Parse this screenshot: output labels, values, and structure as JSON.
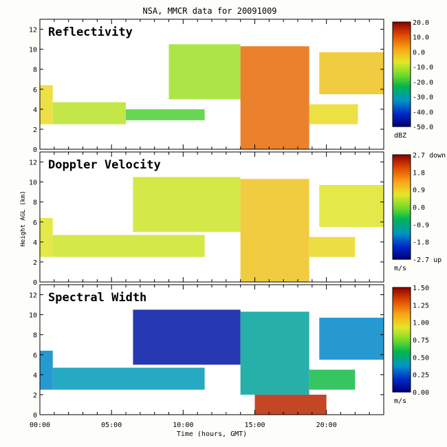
{
  "title": "NSA, MMCR data for 20091009",
  "ylabel": "Height AGL (km)",
  "xlabel": "Time (hours, GMT)",
  "x_ticks": [
    "00:00",
    "05:00",
    "10:00",
    "15:00",
    "20:00"
  ],
  "y_ticks": [
    "0",
    "2",
    "4",
    "6",
    "8",
    "10",
    "12"
  ],
  "chart_data": [
    {
      "type": "heatmap",
      "title": "Reflectivity",
      "xlim": [
        0,
        24
      ],
      "ylim": [
        0,
        13
      ],
      "colorbar": {
        "ticks": [
          "20.0",
          "10.0",
          "0.0",
          "-10.0",
          "-20.0",
          "-30.0",
          "-40.0",
          "-50.0"
        ],
        "unit": "dBZ",
        "range": [
          -50,
          20
        ]
      },
      "cloud_regions": [
        {
          "t_start": 0.0,
          "t_end": 0.9,
          "h_bottom": 2.5,
          "h_top": 6.4,
          "value": -5
        },
        {
          "t_start": 0.9,
          "t_end": 6.0,
          "h_bottom": 2.5,
          "h_top": 4.7,
          "value": -10
        },
        {
          "t_start": 6.0,
          "t_end": 11.5,
          "h_bottom": 2.9,
          "h_top": 4.0,
          "value": -18
        },
        {
          "t_start": 9.0,
          "t_end": 14.0,
          "h_bottom": 5.0,
          "h_top": 10.5,
          "value": -12
        },
        {
          "t_start": 14.0,
          "t_end": 18.8,
          "h_bottom": 0.0,
          "h_top": 10.3,
          "value": 8
        },
        {
          "t_start": 18.8,
          "t_end": 22.2,
          "h_bottom": 2.5,
          "h_top": 4.5,
          "value": -5
        },
        {
          "t_start": 19.5,
          "t_end": 24.0,
          "h_bottom": 5.5,
          "h_top": 9.7,
          "value": -2
        }
      ]
    },
    {
      "type": "heatmap",
      "title": "Doppler Velocity",
      "xlim": [
        0,
        24
      ],
      "ylim": [
        0,
        13
      ],
      "colorbar": {
        "ticks": [
          "2.7 down",
          "1.8",
          "0.9",
          "0.0",
          "-0.9",
          "-1.8",
          "-2.7 up"
        ],
        "unit": "m/s",
        "range": [
          -2.7,
          2.7
        ]
      },
      "cloud_regions": [
        {
          "t_start": 0.0,
          "t_end": 0.9,
          "h_bottom": 2.5,
          "h_top": 6.4,
          "value": 0.6
        },
        {
          "t_start": 0.9,
          "t_end": 11.5,
          "h_bottom": 2.5,
          "h_top": 4.7,
          "value": 0.5
        },
        {
          "t_start": 6.5,
          "t_end": 14.0,
          "h_bottom": 5.0,
          "h_top": 10.5,
          "value": 0.5
        },
        {
          "t_start": 14.0,
          "t_end": 18.8,
          "h_bottom": 0.0,
          "h_top": 10.3,
          "value": 1.0
        },
        {
          "t_start": 18.8,
          "t_end": 22.0,
          "h_bottom": 2.5,
          "h_top": 4.5,
          "value": 0.8
        },
        {
          "t_start": 19.5,
          "t_end": 24.0,
          "h_bottom": 5.5,
          "h_top": 9.7,
          "value": 0.6
        }
      ]
    },
    {
      "type": "heatmap",
      "title": "Spectral Width",
      "xlim": [
        0,
        24
      ],
      "ylim": [
        0,
        13
      ],
      "colorbar": {
        "ticks": [
          "1.50",
          "1.25",
          "1.00",
          "0.75",
          "0.50",
          "0.25",
          "0.00"
        ],
        "unit": "m/s",
        "range": [
          0,
          1.5
        ]
      },
      "cloud_regions": [
        {
          "t_start": 0.0,
          "t_end": 0.9,
          "h_bottom": 2.5,
          "h_top": 6.4,
          "value": 0.35
        },
        {
          "t_start": 0.9,
          "t_end": 11.5,
          "h_bottom": 2.5,
          "h_top": 4.7,
          "value": 0.4
        },
        {
          "t_start": 6.5,
          "t_end": 14.0,
          "h_bottom": 5.0,
          "h_top": 10.5,
          "value": 0.1
        },
        {
          "t_start": 14.0,
          "t_end": 18.8,
          "h_bottom": 2.0,
          "h_top": 10.3,
          "value": 0.45
        },
        {
          "t_start": 15.0,
          "t_end": 20.0,
          "h_bottom": 0.0,
          "h_top": 2.0,
          "value": 1.4
        },
        {
          "t_start": 18.8,
          "t_end": 22.0,
          "h_bottom": 2.5,
          "h_top": 4.5,
          "value": 0.6
        },
        {
          "t_start": 19.5,
          "t_end": 24.0,
          "h_bottom": 5.5,
          "h_top": 9.7,
          "value": 0.35
        }
      ]
    }
  ]
}
